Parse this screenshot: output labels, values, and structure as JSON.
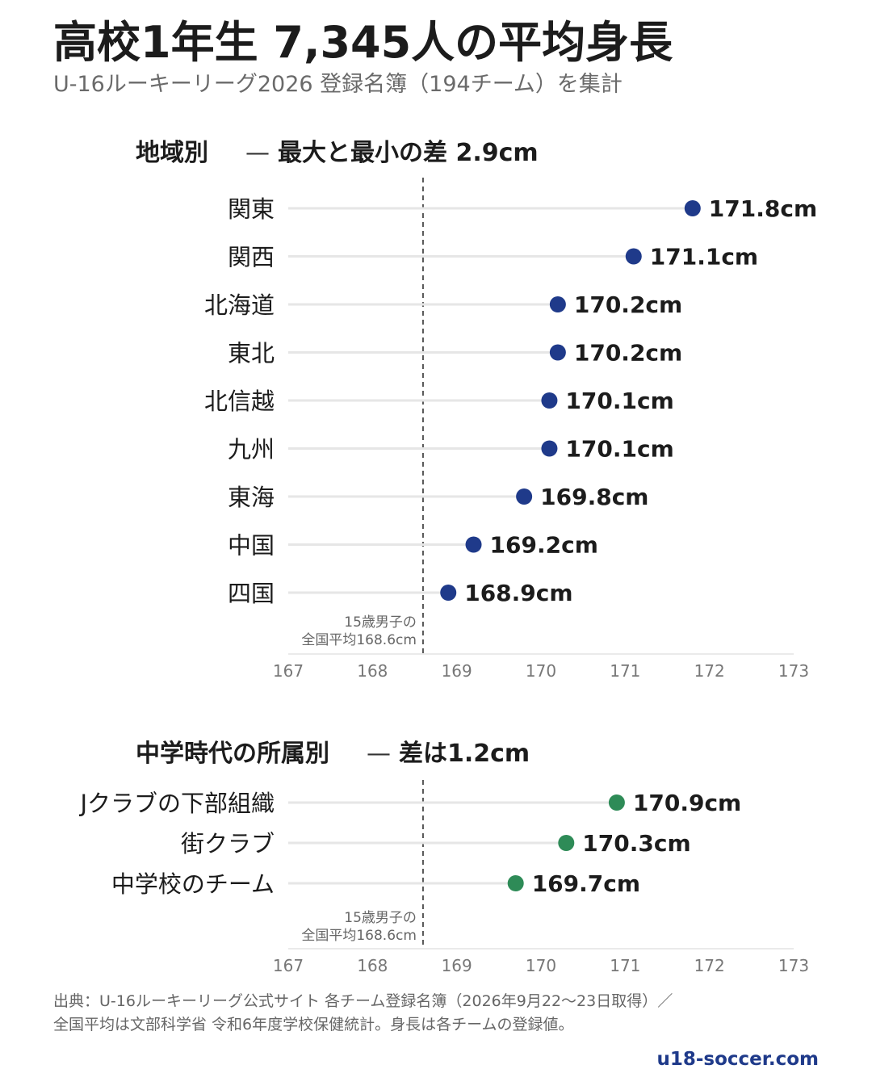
{
  "header": {
    "title": "高校1年生 7,345人の平均身長",
    "subtitle": "U-16ルーキーリーグ2026 登録名簿（194チーム）を集計"
  },
  "colors": {
    "region_dot": "#1f3a8a",
    "club_dot": "#2e8b57",
    "track": "#e6e6e6",
    "reference_line": "#555555"
  },
  "chart_data": [
    {
      "type": "scatter",
      "title_main": "地域別",
      "title_dash": "—",
      "title_note": "最大と最小の差 2.9cm",
      "categories": [
        "関東",
        "関西",
        "北海道",
        "東北",
        "北信越",
        "九州",
        "東海",
        "中国",
        "四国"
      ],
      "values": [
        171.8,
        171.1,
        170.2,
        170.2,
        170.1,
        170.1,
        169.8,
        169.2,
        168.9
      ],
      "labels": [
        "171.8cm",
        "171.1cm",
        "170.2cm",
        "170.2cm",
        "170.1cm",
        "170.1cm",
        "169.8cm",
        "169.2cm",
        "168.9cm"
      ],
      "xlim": [
        167,
        173
      ],
      "xticks": [
        "167",
        "168",
        "169",
        "170",
        "171",
        "172",
        "173"
      ],
      "reference": {
        "value": 168.6,
        "label_line1": "15歳男子の",
        "label_line2": "全国平均168.6cm"
      }
    },
    {
      "type": "scatter",
      "title_main": "中学時代の所属別",
      "title_dash": "—",
      "title_note": "差は1.2cm",
      "categories": [
        "Jクラブの下部組織",
        "街クラブ",
        "中学校のチーム"
      ],
      "values": [
        170.9,
        170.3,
        169.7
      ],
      "labels": [
        "170.9cm",
        "170.3cm",
        "169.7cm"
      ],
      "xlim": [
        167,
        173
      ],
      "xticks": [
        "167",
        "168",
        "169",
        "170",
        "171",
        "172",
        "173"
      ],
      "reference": {
        "value": 168.6,
        "label_line1": "15歳男子の",
        "label_line2": "全国平均168.6cm"
      }
    }
  ],
  "footer": {
    "source_line1": "出典：U-16ルーキーリーグ公式サイト 各チーム登録名簿（2026年9月22〜23日取得）／",
    "source_line2": "全国平均は文部科学省 令和6年度学校保健統計。身長は各チームの登録値。",
    "site": "u18-soccer.com"
  }
}
